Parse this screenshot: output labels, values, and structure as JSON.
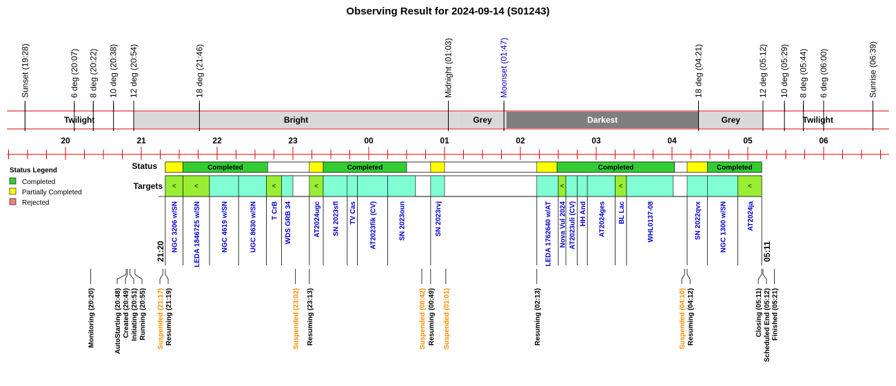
{
  "title": "Observing Result for 2024-09-14 (S01243)",
  "colors": {
    "red": "#dd0000",
    "twilight": "#ffffff",
    "bright": "#d9d9d9",
    "grey": "#d9d9d9",
    "darkest": "#7f7f7f",
    "completed": "#33cc33",
    "partial": "#ffff00",
    "rejected": "#f08080",
    "target_completed": "#80ffd4",
    "target_partial": "#99ee33",
    "blue": "#0000cc",
    "orange": "#ff8c00"
  },
  "sky_events": [
    {
      "label": "Sunset (19:28)",
      "time": "19:28"
    },
    {
      "label": "6 deg (20:07)",
      "time": "20:07"
    },
    {
      "label": "8 deg (20:22)",
      "time": "20:22"
    },
    {
      "label": "10 deg (20:38)",
      "time": "20:38"
    },
    {
      "label": "12 deg (20:54)",
      "time": "20:54"
    },
    {
      "label": "18 deg (21:46)",
      "time": "21:46"
    },
    {
      "label": "Midnight (01:03)",
      "time": "01:03"
    },
    {
      "label": "Moonset (01:47)",
      "time": "01:47",
      "color": "blue"
    },
    {
      "label": "18 deg (04:21)",
      "time": "04:21"
    },
    {
      "label": "12 deg (05:12)",
      "time": "05:12"
    },
    {
      "label": "10 deg (05:29)",
      "time": "05:29"
    },
    {
      "label": "8 deg (05:44)",
      "time": "05:44"
    },
    {
      "label": "6 deg (06:00)",
      "time": "06:00"
    },
    {
      "label": "Sunrise (06:39)",
      "time": "06:39"
    }
  ],
  "periods": [
    {
      "label": "Twilight",
      "start": "19:28",
      "end": "20:54",
      "kind": "twilight"
    },
    {
      "label": "Bright",
      "start": "20:54",
      "end": "01:11",
      "kind": "bright"
    },
    {
      "label": "Grey",
      "start": "01:11",
      "end": "01:49",
      "kind": "grey"
    },
    {
      "label": "Darkest",
      "start": "01:49",
      "end": "04:21",
      "kind": "darkest"
    },
    {
      "label": "Grey",
      "start": "04:21",
      "end": "05:12",
      "kind": "grey"
    },
    {
      "label": "Twilight",
      "start": "05:12",
      "end": "06:39",
      "kind": "twilight"
    }
  ],
  "hours": [
    "20",
    "21",
    "22",
    "23",
    "00",
    "01",
    "02",
    "03",
    "04",
    "05",
    "06"
  ],
  "legend": {
    "title": "Status Legend",
    "items": [
      {
        "label": "Completed",
        "color": "#33cc33"
      },
      {
        "label": "Partially Completed",
        "color": "#ffff00"
      },
      {
        "label": "Rejected",
        "color": "#f08080"
      }
    ]
  },
  "row_labels": {
    "status": "Status",
    "targets": "Targets"
  },
  "status_blocks": [
    {
      "start": "21:19",
      "end": "21:33",
      "state": "partial",
      "label": ""
    },
    {
      "start": "21:33",
      "end": "22:40",
      "state": "completed",
      "label": "Completed"
    },
    {
      "start": "23:13",
      "end": "23:24",
      "state": "partial",
      "label": ""
    },
    {
      "start": "23:24",
      "end": "00:30",
      "state": "completed",
      "label": "Completed"
    },
    {
      "start": "00:49",
      "end": "01:00",
      "state": "partial",
      "label": ""
    },
    {
      "start": "02:13",
      "end": "02:29",
      "state": "partial",
      "label": ""
    },
    {
      "start": "02:29",
      "end": "04:02",
      "state": "completed",
      "label": "Completed"
    },
    {
      "start": "04:12",
      "end": "04:28",
      "state": "partial",
      "label": ""
    },
    {
      "start": "04:28",
      "end": "05:11",
      "state": "completed",
      "label": "Completed"
    }
  ],
  "targets": [
    {
      "name": "NGC 3206 w/SN",
      "start": "21:19",
      "end": "21:33",
      "state": "partial",
      "mark": "<"
    },
    {
      "name": "LEDA 1846725 w/SN",
      "start": "21:33",
      "end": "21:54",
      "state": "partial",
      "mark": "<"
    },
    {
      "name": "NGC 4619 w/SN",
      "start": "21:54",
      "end": "22:17",
      "state": "completed",
      "mark": ""
    },
    {
      "name": "UGC 8630 w/SN",
      "start": "22:17",
      "end": "22:39",
      "state": "completed",
      "mark": ""
    },
    {
      "name": "T CrB",
      "start": "22:39",
      "end": "22:51",
      "state": "partial",
      "mark": "<"
    },
    {
      "name": "WDS GRB 34",
      "start": "22:51",
      "end": "23:00",
      "state": "completed",
      "mark": ""
    },
    {
      "name": "AT2024ugc",
      "start": "23:13",
      "end": "23:24",
      "state": "partial",
      "mark": "<"
    },
    {
      "name": "SN 2023sfl",
      "start": "23:24",
      "end": "23:43",
      "state": "completed",
      "mark": ""
    },
    {
      "name": "TV Cas",
      "start": "23:43",
      "end": "23:51",
      "state": "completed",
      "mark": ""
    },
    {
      "name": "AT2023fik (CV)",
      "start": "23:51",
      "end": "00:15",
      "state": "completed",
      "mark": ""
    },
    {
      "name": "SN 2023oun",
      "start": "00:15",
      "end": "00:37",
      "state": "completed",
      "mark": ""
    },
    {
      "name": "SN 2023rvj",
      "start": "00:49",
      "end": "01:00",
      "state": "completed",
      "mark": ""
    },
    {
      "name": "LEDA 1762640 w/AT",
      "start": "02:13",
      "end": "02:30",
      "state": "completed",
      "mark": ""
    },
    {
      "name": "Nova Vul 2024",
      "start": "02:30",
      "end": "02:36",
      "state": "partial",
      "mark": "<"
    },
    {
      "name": "AT2023uli (CV)",
      "start": "02:36",
      "end": "02:45",
      "state": "completed",
      "mark": ""
    },
    {
      "name": "HH And",
      "start": "02:45",
      "end": "02:53",
      "state": "completed",
      "mark": ""
    },
    {
      "name": "AT2024ges",
      "start": "02:53",
      "end": "03:15",
      "state": "completed",
      "mark": ""
    },
    {
      "name": "BL Lac",
      "start": "03:15",
      "end": "03:24",
      "state": "partial",
      "mark": "<"
    },
    {
      "name": "WHL0137-08",
      "start": "03:24",
      "end": "04:01",
      "state": "completed",
      "mark": ""
    },
    {
      "name": "SN 2022qvx",
      "start": "04:12",
      "end": "04:28",
      "state": "completed",
      "mark": ""
    },
    {
      "name": "NGC 1300 w/SN",
      "start": "04:28",
      "end": "04:52",
      "state": "completed",
      "mark": ""
    },
    {
      "name": "AT2024ja",
      "start": "04:52",
      "end": "05:11",
      "state": "partial",
      "mark": "<"
    }
  ],
  "session_start": "21:20",
  "session_end": "05:11",
  "log_events": [
    {
      "label": "Monitoring (20:20)",
      "time": "20:20",
      "color": "black"
    },
    {
      "label": "AutoStarting (20:48)",
      "time": "20:48",
      "color": "black"
    },
    {
      "label": "Created (20:49)",
      "time": "20:49",
      "color": "black"
    },
    {
      "label": "Initiating (20:51)",
      "time": "20:51",
      "color": "black"
    },
    {
      "label": "Running (20:55)",
      "time": "20:55",
      "color": "black"
    },
    {
      "label": "Suspended (21:17)",
      "time": "21:17",
      "color": "orange"
    },
    {
      "label": "Resuming (21:19)",
      "time": "21:19",
      "color": "black"
    },
    {
      "label": "Suspended (23:02)",
      "time": "23:02",
      "color": "orange"
    },
    {
      "label": "Resuming (23:13)",
      "time": "23:13",
      "color": "black"
    },
    {
      "label": "Suspended (00:42)",
      "time": "00:42",
      "color": "orange"
    },
    {
      "label": "Resuming (00:49)",
      "time": "00:49",
      "color": "black"
    },
    {
      "label": "Suspended (01:01)",
      "time": "01:01",
      "color": "orange"
    },
    {
      "label": "Resuming (02:13)",
      "time": "02:13",
      "color": "black"
    },
    {
      "label": "Suspended (04:10)",
      "time": "04:10",
      "color": "orange"
    },
    {
      "label": "Resuming (04:12)",
      "time": "04:12",
      "color": "black"
    },
    {
      "label": "Closing (05:11)",
      "time": "05:11",
      "color": "black"
    },
    {
      "label": "Scheduled End (05:12)",
      "time": "05:12",
      "color": "black"
    },
    {
      "label": "Finished (05:21)",
      "time": "05:21",
      "color": "black"
    }
  ]
}
